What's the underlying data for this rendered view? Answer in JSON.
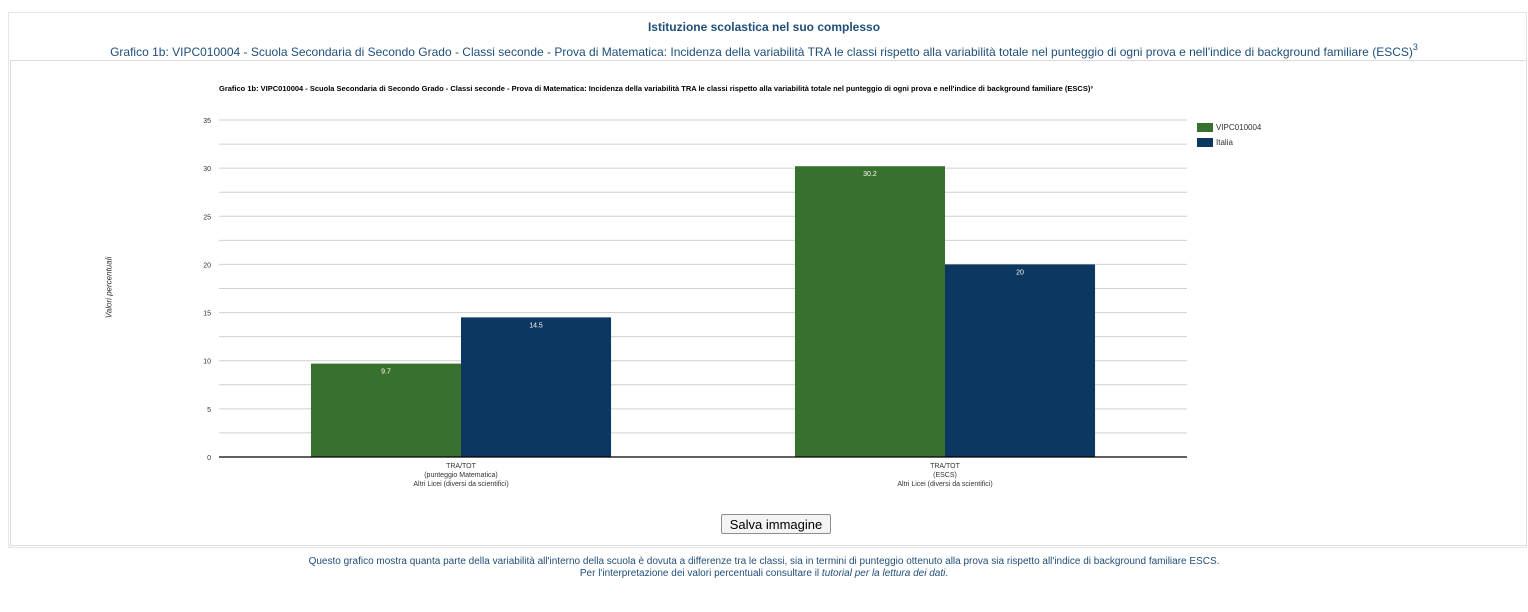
{
  "page": {
    "section_title": "Istituzione scolastica nel suo complesso",
    "subtitle": "Grafico 1b: VIPC010004 - Scuola Secondaria di Secondo Grado - Classi seconde - Prova di Matematica: Incidenza della variabilità TRA le classi rispetto alla variabilità totale nel punteggio di ogni prova e nell'indice di background familiare (ESCS)",
    "subtitle_sup": "3",
    "save_button_label": "Salva immagine",
    "footer_line1": "Questo grafico mostra quanta parte della variabilità all'interno della scuola è dovuta a differenze tra le classi, sia in termini di punteggio ottenuto alla prova sia rispetto all'indice di background familiare ESCS.",
    "footer_line2_prefix": "Per l'interpretazione dei valori percentuali consultare il ",
    "footer_line2_link": "tutorial per la lettura dei dati",
    "footer_line2_suffix": "."
  },
  "chart_data": {
    "type": "bar",
    "title": "Grafico 1b: VIPC010004 - Scuola Secondaria di Secondo Grado - Classi seconde - Prova di Matematica: Incidenza della variabilità TRA le classi rispetto alla variabilità totale nel punteggio di ogni prova e nell'indice di background familiare (ESCS)³",
    "ylabel": "Valori percentuali",
    "xlabel": "",
    "ylim": [
      0,
      35
    ],
    "yticks": [
      0,
      5,
      10,
      15,
      20,
      25,
      30,
      35
    ],
    "grid": true,
    "legend_position": "top-right",
    "categories": [
      [
        "TRA/TOT",
        "(punteggio Matematica)",
        "Altri Licei (diversi da scientifici)"
      ],
      [
        "TRA/TOT",
        "(ESCS)",
        "Altri Licei (diversi da scientifici)"
      ]
    ],
    "series": [
      {
        "name": "VIPC010004",
        "color": "#38702d",
        "values": [
          9.7,
          30.2
        ]
      },
      {
        "name": "Italia",
        "color": "#0b3761",
        "values": [
          14.5,
          20
        ]
      }
    ],
    "data_labels": [
      [
        "9.7",
        "30.2"
      ],
      [
        "14.5",
        "20"
      ]
    ],
    "label_color": "#ffffff",
    "grid_color": "#d0d0d0",
    "axis_color": "#000000"
  }
}
